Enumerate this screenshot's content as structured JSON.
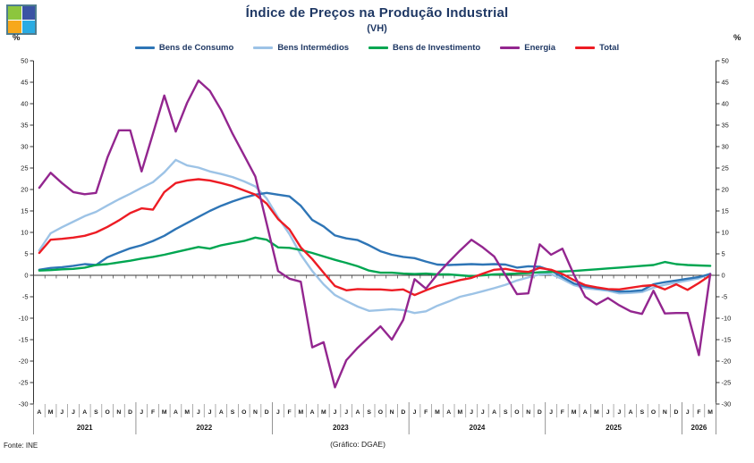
{
  "logo": {
    "colors": {
      "top_left": "#8CC63E",
      "top_right": "#3A53A4",
      "bottom_left": "#F7A81B",
      "bottom_right": "#29ABE2",
      "border": "#4F7D8F"
    }
  },
  "header": {
    "title": "Índice de Preços na Produção Industrial",
    "subtitle": "(VH)"
  },
  "axis": {
    "left_unit": "%",
    "right_unit": "%"
  },
  "footer": {
    "source": "Fonte: INE",
    "credit": "(Gráfico: DGAE)"
  },
  "chart_data": {
    "type": "line",
    "title": "Índice de Preços na Produção Industrial (VH)",
    "xlabel": "",
    "ylabel": "%",
    "ylim": [
      -30,
      50
    ],
    "ytick_step": 5,
    "grid": false,
    "legend_position": "top",
    "month_letters": [
      "A",
      "M",
      "J",
      "J",
      "A",
      "S",
      "O",
      "N",
      "D",
      "J",
      "F",
      "M",
      "A",
      "M",
      "J",
      "J",
      "A",
      "S",
      "O",
      "N",
      "D",
      "J",
      "F",
      "M",
      "A",
      "M",
      "J",
      "J",
      "A",
      "S",
      "O",
      "N",
      "D",
      "J",
      "F",
      "M",
      "A",
      "M",
      "J",
      "J",
      "A",
      "S",
      "O",
      "N",
      "D",
      "J",
      "F",
      "M",
      "A",
      "M",
      "J",
      "J",
      "A",
      "S",
      "O",
      "N",
      "D",
      "J",
      "F",
      "M"
    ],
    "years": [
      {
        "label": "2021",
        "start": 0,
        "end": 8
      },
      {
        "label": "2022",
        "start": 9,
        "end": 20
      },
      {
        "label": "2023",
        "start": 21,
        "end": 32
      },
      {
        "label": "2024",
        "start": 33,
        "end": 44
      },
      {
        "label": "2025",
        "start": 45,
        "end": 56
      },
      {
        "label": "2026",
        "start": 57,
        "end": 59
      }
    ],
    "series": [
      {
        "name": "Bens de Consumo",
        "color": "#2E75B6",
        "values": [
          1.3,
          1.7,
          1.9,
          2.2,
          2.6,
          2.4,
          4.2,
          5.3,
          6.3,
          7.0,
          8.0,
          9.2,
          10.8,
          12.2,
          13.6,
          15.0,
          16.2,
          17.2,
          18.1,
          18.8,
          19.2,
          18.8,
          18.4,
          16.2,
          12.9,
          11.4,
          9.3,
          8.6,
          8.2,
          7.0,
          5.6,
          4.8,
          4.3,
          4.0,
          3.2,
          2.5,
          2.4,
          2.5,
          2.6,
          2.5,
          2.6,
          2.5,
          1.8,
          2.1,
          2.0,
          1.1,
          -0.4,
          -1.9,
          -2.6,
          -3.0,
          -3.3,
          -3.8,
          -3.7,
          -3.5,
          -2.1,
          -1.6,
          -1.2,
          -0.8,
          -0.4,
          0.3
        ]
      },
      {
        "name": "Bens Intermédios",
        "color": "#9DC3E6",
        "values": [
          5.8,
          9.8,
          11.2,
          12.5,
          13.8,
          14.8,
          16.3,
          17.7,
          19.0,
          20.4,
          21.7,
          24.0,
          26.9,
          25.6,
          25.1,
          24.2,
          23.6,
          22.9,
          21.9,
          20.7,
          17.9,
          13.5,
          9.6,
          4.8,
          1.0,
          -2.1,
          -4.6,
          -6.0,
          -7.3,
          -8.3,
          -8.1,
          -7.9,
          -8.1,
          -8.8,
          -8.4,
          -7.1,
          -6.1,
          -5.0,
          -4.4,
          -3.7,
          -3.0,
          -2.2,
          -1.2,
          -0.5,
          0.2,
          0.3,
          -0.9,
          -2.3,
          -3.0,
          -3.3,
          -3.6,
          -4.2,
          -4.1,
          -3.9,
          -2.9,
          -2.2,
          -1.7,
          -1.2,
          -0.7,
          0.4
        ]
      },
      {
        "name": "Bens de Investimento",
        "color": "#00A651",
        "values": [
          1.1,
          1.2,
          1.4,
          1.5,
          1.8,
          2.4,
          2.6,
          3.0,
          3.4,
          3.9,
          4.3,
          4.8,
          5.4,
          6.0,
          6.6,
          6.2,
          7.0,
          7.5,
          8.0,
          8.8,
          8.3,
          6.5,
          6.4,
          5.9,
          5.2,
          4.4,
          3.6,
          2.9,
          2.1,
          1.1,
          0.6,
          0.6,
          0.4,
          0.3,
          0.4,
          0.2,
          0.2,
          0.0,
          -0.2,
          0.0,
          0.2,
          0.3,
          0.4,
          0.5,
          0.7,
          0.8,
          0.9,
          1.0,
          1.2,
          1.4,
          1.6,
          1.8,
          2.0,
          2.2,
          2.4,
          3.1,
          2.6,
          2.4,
          2.3,
          2.2
        ]
      },
      {
        "name": "Energia",
        "color": "#93268F",
        "values": [
          20.4,
          23.9,
          21.5,
          19.4,
          18.9,
          19.2,
          27.5,
          33.8,
          33.8,
          24.2,
          33.0,
          41.9,
          33.5,
          40.2,
          45.4,
          43.0,
          38.5,
          33.0,
          28.0,
          23.0,
          12.0,
          1.0,
          -0.8,
          -1.5,
          -16.8,
          -15.6,
          -26.1,
          -19.8,
          -16.9,
          -14.4,
          -11.9,
          -15.0,
          -10.4,
          -0.9,
          -3.1,
          0.2,
          3.1,
          5.8,
          8.3,
          6.5,
          4.4,
          0.0,
          -4.4,
          -4.2,
          7.2,
          4.8,
          6.2,
          0.2,
          -5.0,
          -6.8,
          -5.3,
          -7.0,
          -8.4,
          -9.0,
          -3.6,
          -8.9,
          -8.8,
          -8.8,
          -18.6,
          0.3
        ]
      },
      {
        "name": "Total",
        "color": "#ED1C24",
        "values": [
          5.2,
          8.3,
          8.5,
          8.8,
          9.2,
          10.0,
          11.3,
          12.8,
          14.5,
          15.6,
          15.3,
          19.4,
          21.5,
          22.1,
          22.4,
          22.1,
          21.5,
          20.8,
          19.8,
          18.8,
          16.7,
          13.1,
          10.7,
          6.5,
          3.8,
          0.6,
          -2.5,
          -3.5,
          -3.2,
          -3.3,
          -3.3,
          -3.5,
          -3.3,
          -4.6,
          -3.5,
          -2.5,
          -1.8,
          -1.1,
          -0.6,
          0.4,
          1.3,
          1.5,
          1.0,
          0.8,
          1.7,
          1.3,
          0.3,
          -1.1,
          -2.3,
          -2.8,
          -3.2,
          -3.3,
          -2.9,
          -2.5,
          -2.3,
          -3.3,
          -2.1,
          -3.4,
          -1.8,
          0.0
        ]
      }
    ]
  }
}
